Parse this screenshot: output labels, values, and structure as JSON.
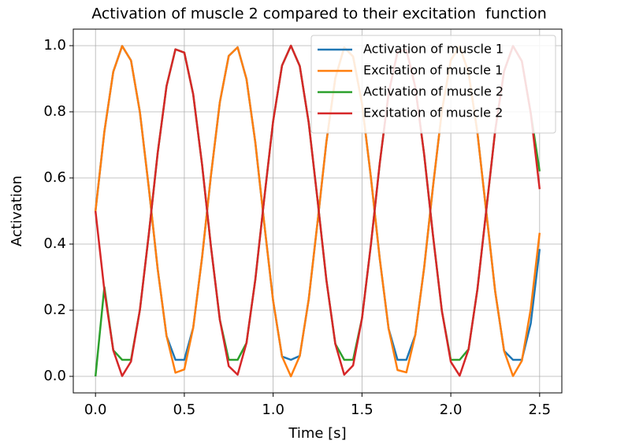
{
  "chart_data": {
    "type": "line",
    "title": "Activation of muscle 2 compared to their excitation  function",
    "xlabel": "Time [s]",
    "ylabel": "Activation",
    "x": [
      0,
      0.05,
      0.1,
      0.15,
      0.2,
      0.25,
      0.3,
      0.35,
      0.4,
      0.45,
      0.5,
      0.55,
      0.6,
      0.65,
      0.7,
      0.75,
      0.8,
      0.85,
      0.9,
      0.95,
      1.0,
      1.05,
      1.1,
      1.15,
      1.2,
      1.25,
      1.3,
      1.35,
      1.4,
      1.45,
      1.5,
      1.55,
      1.6,
      1.65,
      1.7,
      1.75,
      1.8,
      1.85,
      1.9,
      1.95,
      2.0,
      2.05,
      2.1,
      2.15,
      2.2,
      2.25,
      2.3,
      2.35,
      2.4,
      2.45,
      2.5
    ],
    "series": [
      {
        "name": "Activation of muscle 1",
        "color": "#1f77b4",
        "values": [
          0.5,
          0.74,
          0.921,
          0.999,
          0.955,
          0.799,
          0.571,
          0.325,
          0.122,
          0.05,
          0.05,
          0.147,
          0.36,
          0.608,
          0.829,
          0.969,
          0.995,
          0.899,
          0.706,
          0.462,
          0.228,
          0.06,
          0.05,
          0.062,
          0.232,
          0.467,
          0.71,
          0.902,
          0.995,
          0.967,
          0.825,
          0.603,
          0.356,
          0.144,
          0.05,
          0.05,
          0.125,
          0.329,
          0.575,
          0.803,
          0.956,
          0.998,
          0.918,
          0.736,
          0.496,
          0.256,
          0.077,
          0.05,
          0.05,
          0.16,
          0.385
        ]
      },
      {
        "name": "Excitation of muscle 1",
        "color": "#ff7f0e",
        "values": [
          0.5,
          0.74,
          0.921,
          0.999,
          0.955,
          0.799,
          0.571,
          0.325,
          0.122,
          0.011,
          0.021,
          0.147,
          0.36,
          0.608,
          0.829,
          0.969,
          0.995,
          0.899,
          0.706,
          0.462,
          0.228,
          0.06,
          0.0,
          0.062,
          0.232,
          0.467,
          0.71,
          0.902,
          0.995,
          0.967,
          0.825,
          0.603,
          0.356,
          0.144,
          0.019,
          0.012,
          0.125,
          0.329,
          0.575,
          0.803,
          0.956,
          0.998,
          0.918,
          0.736,
          0.496,
          0.256,
          0.077,
          0.001,
          0.047,
          0.204,
          0.434
        ]
      },
      {
        "name": "Activation of muscle 2",
        "color": "#2ca02c",
        "values": [
          0,
          0.27,
          0.079,
          0.05,
          0.05,
          0.201,
          0.429,
          0.675,
          0.878,
          0.989,
          0.979,
          0.853,
          0.64,
          0.392,
          0.171,
          0.05,
          0.05,
          0.101,
          0.294,
          0.538,
          0.772,
          0.94,
          1.0,
          0.938,
          0.768,
          0.533,
          0.29,
          0.098,
          0.05,
          0.05,
          0.175,
          0.397,
          0.644,
          0.856,
          0.981,
          0.988,
          0.875,
          0.671,
          0.425,
          0.197,
          0.05,
          0.05,
          0.082,
          0.264,
          0.504,
          0.744,
          0.923,
          0.999,
          0.953,
          0.796,
          0.62
        ]
      },
      {
        "name": "Excitation of muscle 2",
        "color": "#d62728",
        "values": [
          0.5,
          0.26,
          0.079,
          0.001,
          0.045,
          0.201,
          0.429,
          0.675,
          0.878,
          0.989,
          0.979,
          0.853,
          0.64,
          0.392,
          0.171,
          0.031,
          0.005,
          0.101,
          0.294,
          0.538,
          0.772,
          0.94,
          1.0,
          0.938,
          0.768,
          0.533,
          0.29,
          0.098,
          0.005,
          0.033,
          0.175,
          0.397,
          0.644,
          0.856,
          0.981,
          0.988,
          0.875,
          0.671,
          0.425,
          0.197,
          0.044,
          0.002,
          0.082,
          0.264,
          0.504,
          0.744,
          0.923,
          0.999,
          0.953,
          0.796,
          0.566
        ]
      }
    ],
    "xlim": [
      -0.125,
      2.625
    ],
    "ylim": [
      -0.05,
      1.05
    ],
    "xticks": [
      {
        "value": 0,
        "label": "0.0"
      },
      0.5,
      {
        "value": 1,
        "label": "1.0"
      },
      1.5,
      {
        "value": 2,
        "label": "2.0"
      },
      2.5
    ],
    "yticks": [
      {
        "value": 0,
        "label": "0.0"
      },
      0.2,
      0.4,
      0.6,
      0.8,
      {
        "value": 1,
        "label": "1.0"
      }
    ],
    "grid": true,
    "legend": "upper right"
  }
}
